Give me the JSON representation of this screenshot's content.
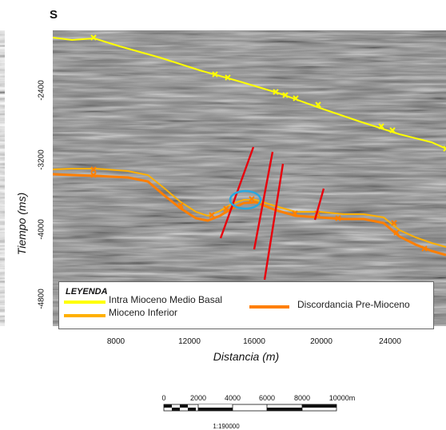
{
  "corner_label": "S",
  "axes": {
    "ylabel": "Tiempo (ms)",
    "xlabel": "Distancia (m)",
    "yticks": [
      "-2400",
      "-3200",
      "-4000",
      "-4800"
    ],
    "xticks": [
      "8000",
      "12000",
      "16000",
      "20000",
      "24000"
    ]
  },
  "legend": {
    "title": "LEYENDA",
    "items": [
      {
        "label": "Intra Mioceno Medio Basal",
        "color": "#ffff00"
      },
      {
        "label": "Mioceno Inferior",
        "color": "#ffb000"
      },
      {
        "label": "Discordancia Pre-Mioceno",
        "color": "#ff7f00"
      }
    ]
  },
  "scalebar": {
    "ticks": [
      "0",
      "2000",
      "4000",
      "6000",
      "8000",
      "10000m"
    ],
    "ratio": "1:190000"
  },
  "colors": {
    "fault": "#e8000c",
    "highlight_ellipse": "#29a8e0",
    "horizon_marker": "#ffff00"
  }
}
